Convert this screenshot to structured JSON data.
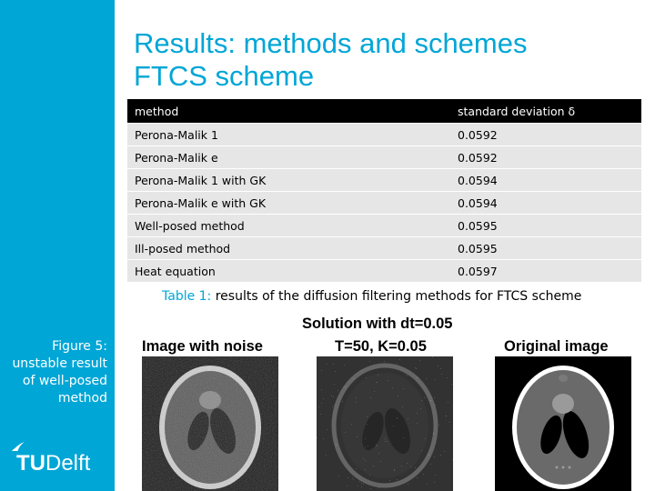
{
  "title": {
    "line1": "Results: methods and schemes",
    "line2": "FTCS scheme"
  },
  "table": {
    "headers": [
      "method",
      "standard deviation δ"
    ],
    "rows": [
      [
        "Perona-Malik 1",
        "0.0592"
      ],
      [
        "Perona-Malik e",
        "0.0592"
      ],
      [
        "Perona-Malik 1 with GK",
        "0.0594"
      ],
      [
        "Perona-Malik e with GK",
        "0.0594"
      ],
      [
        "Well-posed method",
        "0.0595"
      ],
      [
        "Ill-posed method",
        "0.0595"
      ],
      [
        "Heat equation",
        "0.0597"
      ]
    ],
    "caption_label": "Table 1:",
    "caption_text": " results of the diffusion filtering methods for FTCS scheme"
  },
  "figure": {
    "title": "Solution with dt=0.05",
    "panels": [
      {
        "title": "Image with noise"
      },
      {
        "title": "T=50, K=0.05"
      },
      {
        "title": "Original image"
      }
    ],
    "caption": [
      "Figure 5:",
      "unstable result",
      "of well-posed",
      "method"
    ]
  },
  "logo": {
    "bold": "TU",
    "rest": "Delft"
  },
  "colors": {
    "accent": "#00a6d6",
    "header_bg": "#000000",
    "row_bg": "#e6e6e6"
  }
}
